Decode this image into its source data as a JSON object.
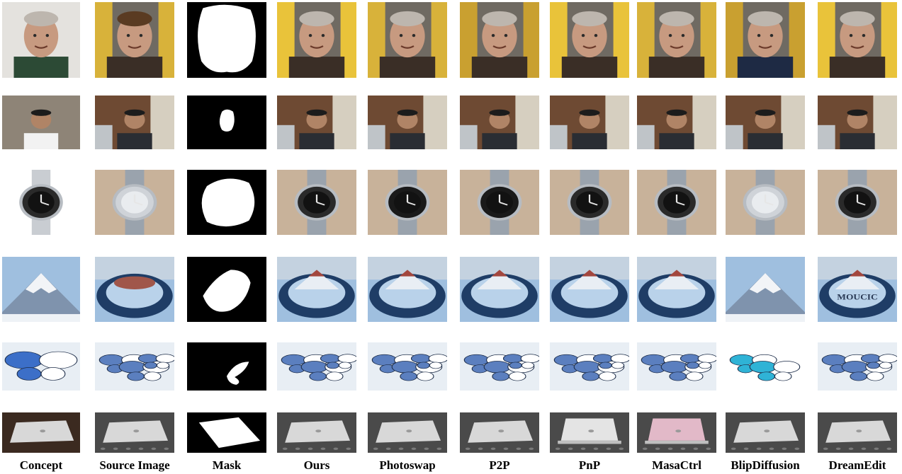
{
  "columns": [
    {
      "key": "concept",
      "label": "Concept"
    },
    {
      "key": "source",
      "label": "Source Image"
    },
    {
      "key": "mask",
      "label": "Mask"
    },
    {
      "key": "ours",
      "label": "Ours"
    },
    {
      "key": "photoswap",
      "label": "Photoswap"
    },
    {
      "key": "p2p",
      "label": "P2P"
    },
    {
      "key": "pnp",
      "label": "PnP"
    },
    {
      "key": "masactrl",
      "label": "MasaCtrl"
    },
    {
      "key": "blipdiffusion",
      "label": "BlipDiffusion"
    },
    {
      "key": "dreamedit",
      "label": "DreamEdit"
    }
  ],
  "rows": [
    {
      "subject": "face-older-man",
      "subject_color": "#c79a80",
      "background_color": "#d9d2c8"
    },
    {
      "subject": "face-man-glasses",
      "subject_color": "#b08466",
      "background_color": "#8a7a68"
    },
    {
      "subject": "wristwatch",
      "subject_color": "#2b2b2b",
      "background_color": "#c8b29a"
    },
    {
      "subject": "snow-mountain",
      "subject_color": "#f2f4f7",
      "background_color": "#9fbfdf"
    },
    {
      "subject": "blue-butterfly",
      "subject_color": "#3c6fc8",
      "background_color": "#e8eef4"
    },
    {
      "subject": "laptop",
      "subject_color": "#d8d8d8",
      "background_color": "#4a4a4a"
    }
  ],
  "colors": {
    "mask_background": "#000000",
    "mask_foreground": "#ffffff",
    "ink": "#000000",
    "dreamedit_text_overlay": "#2a3a55"
  },
  "overlay_text": {
    "dreamedit_mountain": "MOUCIC"
  }
}
